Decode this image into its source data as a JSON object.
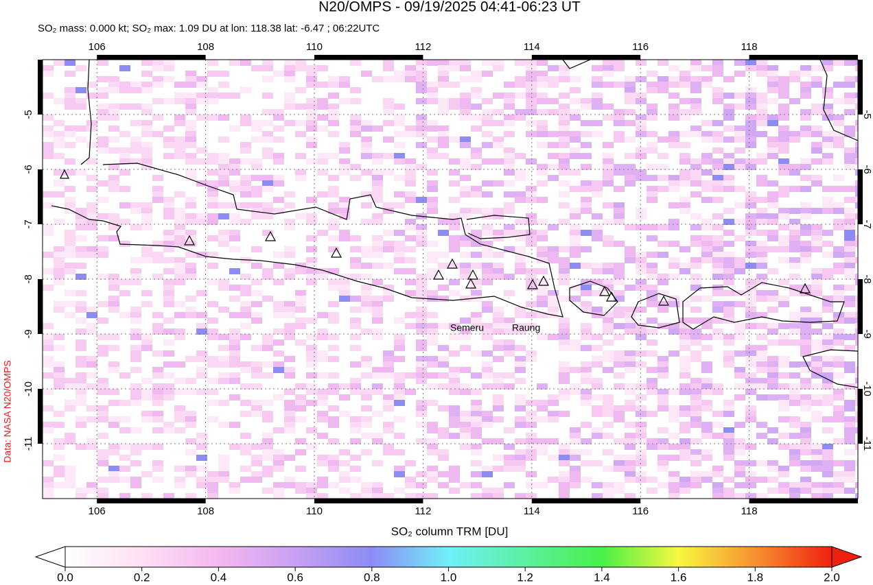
{
  "title": "N20/OMPS - 09/19/2025 04:41-06:23 UT",
  "subtitle": "SO₂ mass: 0.000 kt; SO₂ max: 1.09 DU at lon: 118.38 lat: -6.47 ; 06:22UTC",
  "credit": "Data: NASA N20/OMPS",
  "map": {
    "xlim": [
      105,
      120
    ],
    "ylim": [
      -12,
      -4
    ],
    "xticks": [
      106,
      108,
      110,
      112,
      114,
      116,
      118
    ],
    "yticks": [
      -5,
      -6,
      -7,
      -8,
      -9,
      -10,
      -11
    ],
    "volcano_labels": [
      "Semeru",
      "Raung"
    ]
  },
  "colorbar": {
    "label": "SO₂ column TRM [DU]",
    "lim": [
      0,
      2
    ],
    "ticks": [
      {
        "value": 0,
        "label": "0.0"
      },
      {
        "value": 0.2,
        "label": "0.2"
      },
      {
        "value": 0.4,
        "label": "0.4"
      },
      {
        "value": 0.6,
        "label": "0.6"
      },
      {
        "value": 0.8,
        "label": "0.8"
      },
      {
        "value": 1,
        "label": "1.0"
      },
      {
        "value": 1.2,
        "label": "1.2"
      },
      {
        "value": 1.4,
        "label": "1.4"
      },
      {
        "value": 1.6,
        "label": "1.6"
      },
      {
        "value": 1.8,
        "label": "1.8"
      },
      {
        "value": 2,
        "label": "2.0"
      }
    ]
  }
}
